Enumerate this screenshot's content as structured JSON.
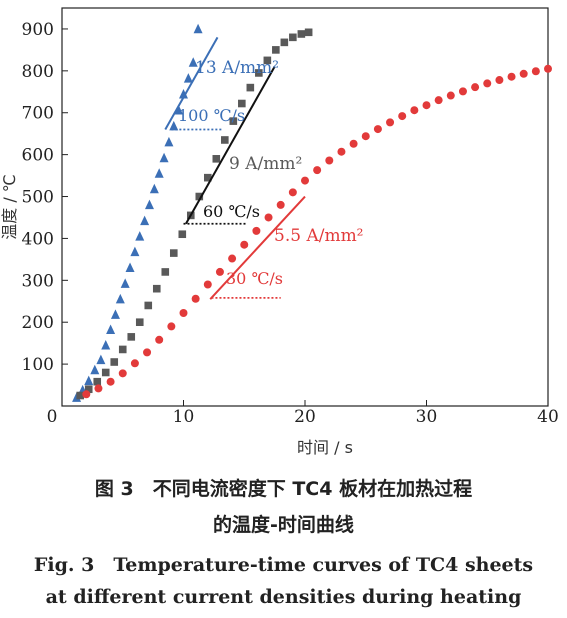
{
  "chart_data": {
    "type": "scatter",
    "xlabel": "时间 / s",
    "ylabel": "温度 / ℃",
    "xlim": [
      0,
      40
    ],
    "ylim": [
      0,
      950
    ],
    "x_ticks": [
      "0",
      "10",
      "20",
      "30",
      "40"
    ],
    "y_ticks": [
      "100",
      "200",
      "300",
      "400",
      "500",
      "600",
      "700",
      "800",
      "900"
    ],
    "legend": "none",
    "grid": false,
    "series": [
      {
        "name": "13 A/mm²",
        "marker": "triangle",
        "color": "#3b6fb6",
        "x": [
          1.2,
          1.7,
          2.2,
          2.7,
          3.2,
          3.6,
          4.0,
          4.4,
          4.8,
          5.2,
          5.6,
          6.0,
          6.4,
          6.8,
          7.2,
          7.6,
          8.0,
          8.4,
          8.8,
          9.2,
          9.6,
          10.0,
          10.4,
          10.8,
          11.2
        ],
        "y": [
          20,
          38,
          60,
          86,
          110,
          145,
          182,
          218,
          255,
          292,
          330,
          368,
          405,
          442,
          480,
          518,
          555,
          592,
          630,
          668,
          706,
          744,
          782,
          820,
          900
        ]
      },
      {
        "name": "9 A/mm²",
        "marker": "square",
        "color": "#595959",
        "x": [
          1.5,
          2.2,
          2.9,
          3.6,
          4.3,
          5.0,
          5.7,
          6.4,
          7.1,
          7.8,
          8.5,
          9.2,
          9.9,
          10.6,
          11.3,
          12.0,
          12.7,
          13.4,
          14.1,
          14.8,
          15.5,
          16.2,
          16.9,
          17.6,
          18.3,
          19.0,
          19.7,
          20.3
        ],
        "y": [
          25,
          40,
          58,
          80,
          105,
          135,
          165,
          200,
          240,
          280,
          320,
          365,
          410,
          455,
          500,
          545,
          590,
          635,
          680,
          722,
          760,
          795,
          825,
          850,
          868,
          880,
          888,
          892
        ]
      },
      {
        "name": "5.5 A/mm²",
        "marker": "circle",
        "color": "#e23a3a",
        "x": [
          2,
          3,
          4,
          5,
          6,
          7,
          8,
          9,
          10,
          11,
          12,
          13,
          14,
          15,
          16,
          17,
          18,
          19,
          20,
          21,
          22,
          23,
          24,
          25,
          26,
          27,
          28,
          29,
          30,
          31,
          32,
          33,
          34,
          35,
          36,
          37,
          38,
          39,
          40
        ],
        "y": [
          28,
          42,
          58,
          78,
          102,
          128,
          158,
          190,
          222,
          256,
          290,
          320,
          352,
          385,
          418,
          450,
          480,
          510,
          538,
          563,
          586,
          607,
          626,
          644,
          661,
          677,
          692,
          706,
          718,
          730,
          741,
          751,
          761,
          770,
          778,
          786,
          793,
          799,
          805
        ]
      }
    ],
    "annotations": [
      {
        "text": "100 ℃/s",
        "color": "#3b6fb6"
      },
      {
        "text": "60 ℃/s",
        "color": "#111111"
      },
      {
        "text": "30 ℃/s",
        "color": "#e23a3a"
      }
    ],
    "fit_lines": [
      {
        "x": [
          8.5,
          12.8
        ],
        "y": [
          660,
          880
        ],
        "color": "#3b6fb6"
      },
      {
        "x": [
          10.2,
          17.5
        ],
        "y": [
          435,
          810
        ],
        "color": "#111111"
      },
      {
        "x": [
          12.2,
          20.0
        ],
        "y": [
          255,
          500
        ],
        "color": "#e23a3a"
      }
    ],
    "ref_lines": [
      {
        "x": [
          9.0,
          13.2
        ],
        "y": 660,
        "color": "#3b6fb6"
      },
      {
        "x": [
          10.0,
          15.2
        ],
        "y": 435,
        "color": "#111111"
      },
      {
        "x": [
          12.3,
          18.0
        ],
        "y": 258,
        "color": "#e23a3a"
      }
    ]
  },
  "caption": {
    "cn_line1": "图 3　不同电流密度下 TC4 板材在加热过程",
    "cn_line2": "的温度-时间曲线",
    "en_line1": "Fig. 3　Temperature-time curves of TC4 sheets",
    "en_line2": "at different current densities during heating"
  }
}
